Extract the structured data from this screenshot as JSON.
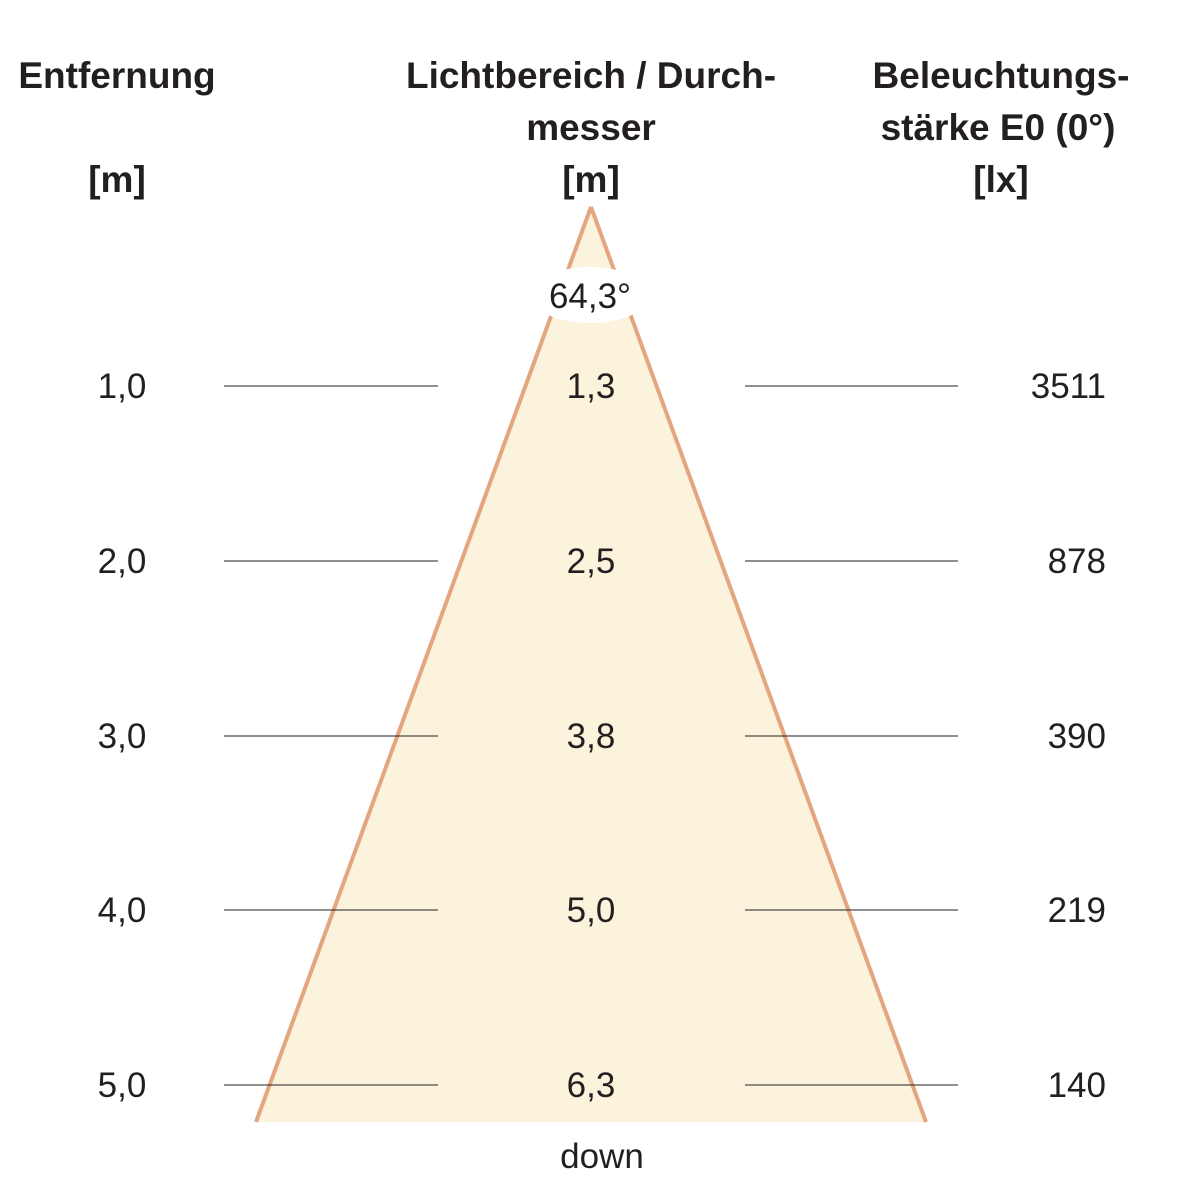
{
  "headers": {
    "distance": [
      "Entfernung",
      "",
      "[m]"
    ],
    "diameter": [
      "Lichtbereich / Durch-",
      "messer",
      "[m]"
    ],
    "illuminance": [
      "Beleuchtungs-",
      "stärke E0 (0°)",
      "[lx]"
    ]
  },
  "beam_angle": "64,3°",
  "rows": [
    {
      "distance": "1,0",
      "diameter": "1,3",
      "illuminance": "3511"
    },
    {
      "distance": "2,0",
      "diameter": "2,5",
      "illuminance": "878"
    },
    {
      "distance": "3,0",
      "diameter": "3,8",
      "illuminance": "390"
    },
    {
      "distance": "4,0",
      "diameter": "5,0",
      "illuminance": "219"
    },
    {
      "distance": "5,0",
      "diameter": "6,3",
      "illuminance": "140"
    }
  ],
  "direction": "down",
  "colors": {
    "cone_fill": "#fcf3dc",
    "cone_edge": "#e3a680",
    "text": "#231f20"
  }
}
